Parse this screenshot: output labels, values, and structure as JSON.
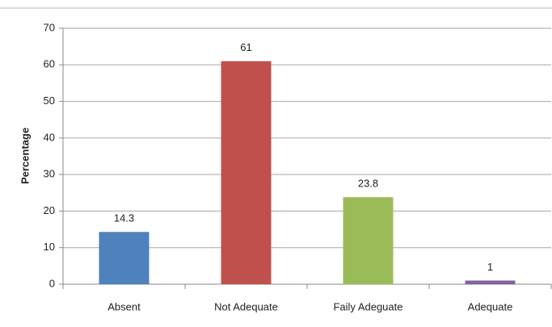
{
  "chart_data": {
    "type": "bar",
    "y_label": "Percentage",
    "categories": [
      "Absent",
      "Not Adequate",
      "Faily Adeguate",
      "Adequate"
    ],
    "values": [
      14.3,
      61,
      23.8,
      1
    ],
    "colors": [
      "#4f81bd",
      "#c0504d",
      "#9bbb59",
      "#8064a2"
    ],
    "ylim": [
      0,
      70
    ],
    "yticks": [
      0,
      10,
      20,
      30,
      40,
      50,
      60,
      70
    ],
    "grid": true
  }
}
